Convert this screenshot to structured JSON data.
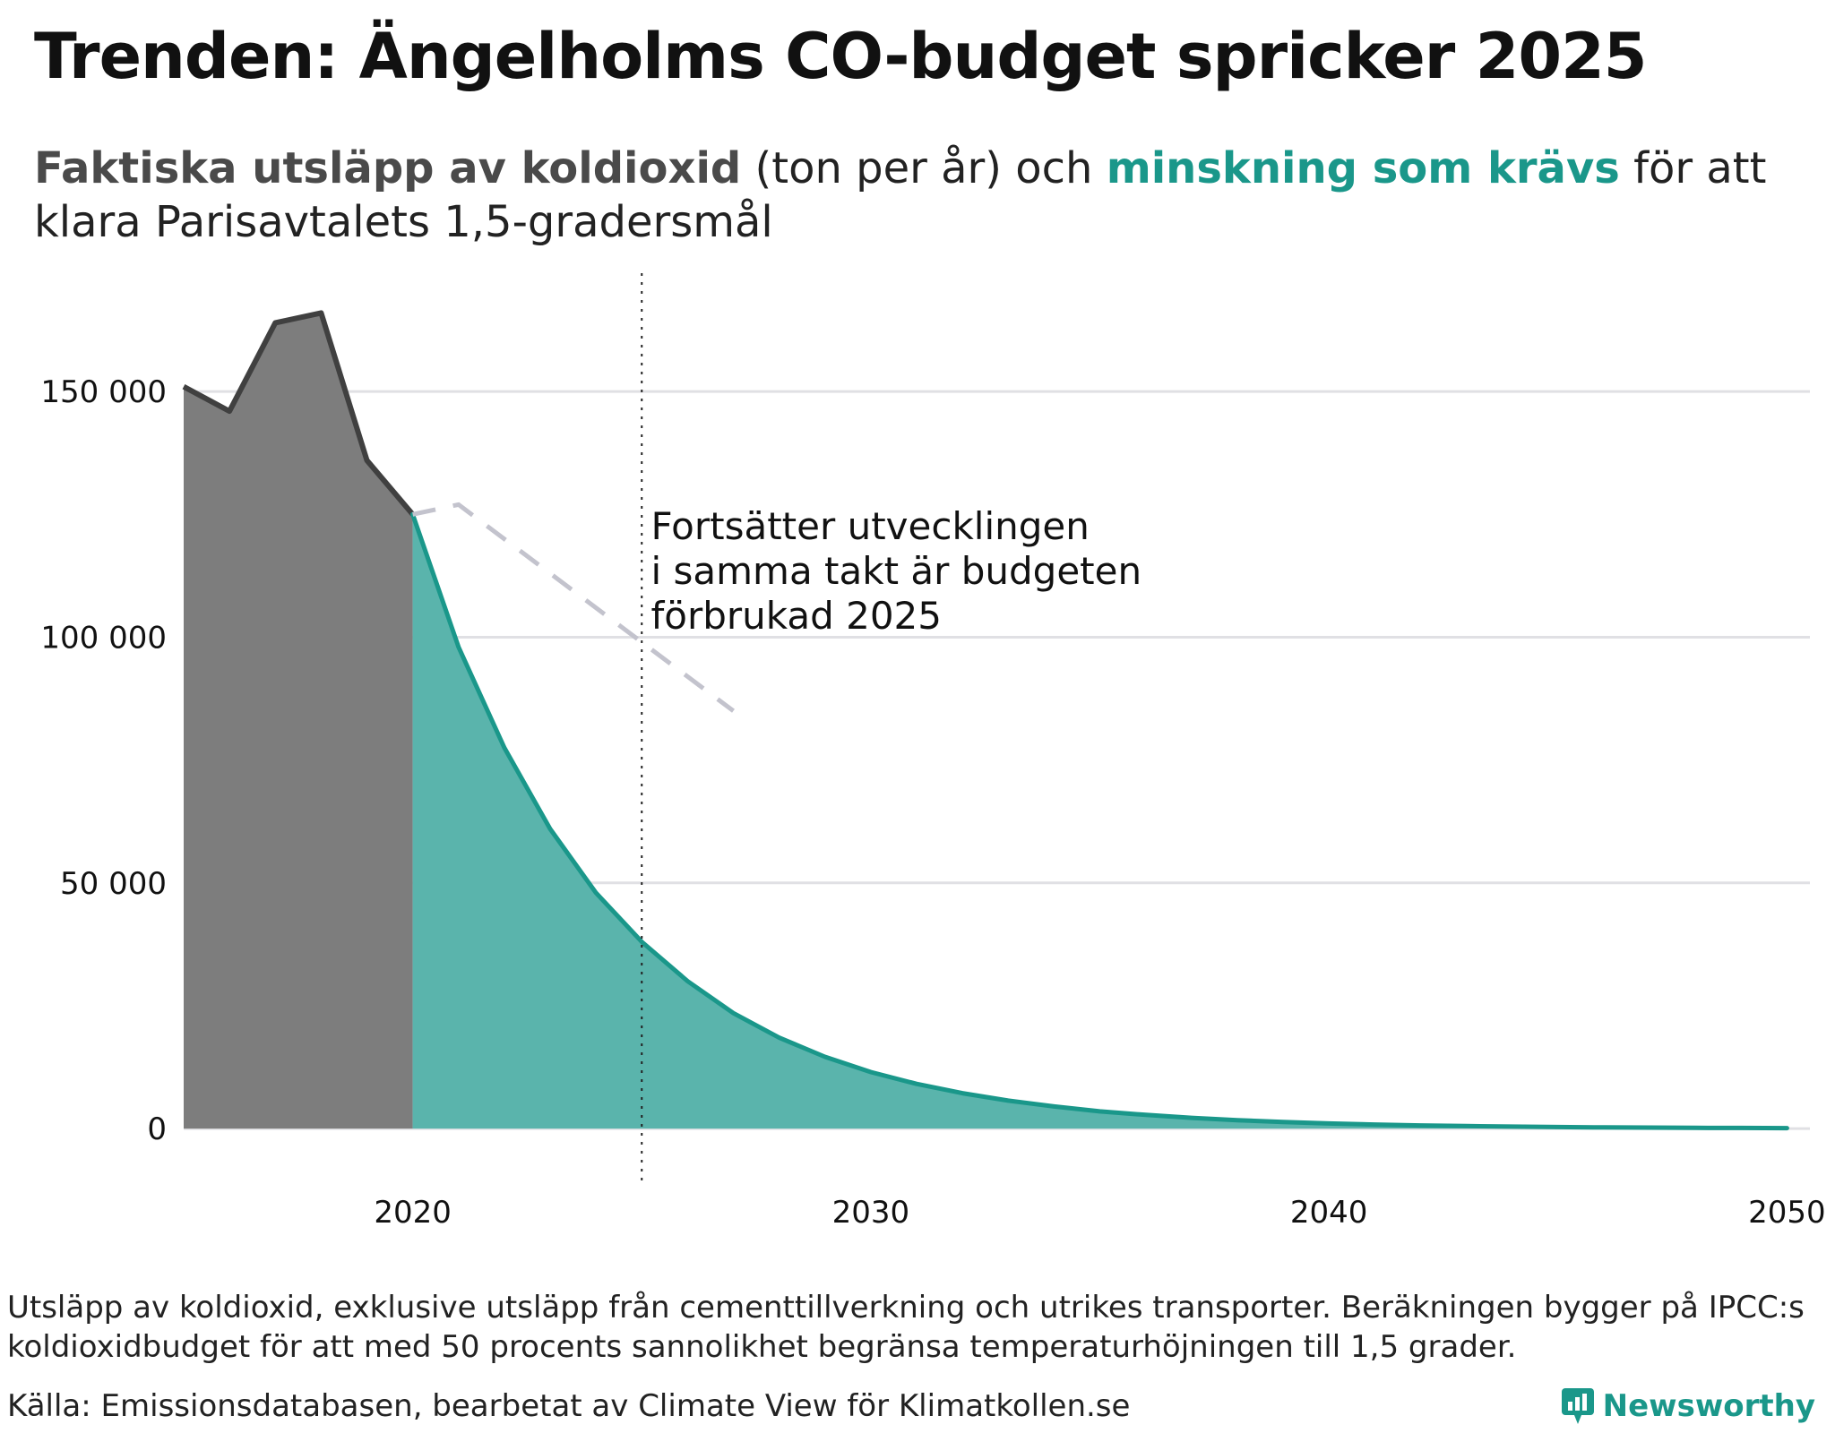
{
  "title": "Trenden: Ängelholms CO-budget spricker 2025",
  "subtitle": {
    "part1": "Faktiska utsläpp av koldioxid",
    "part2": " (ton per år) och ",
    "part3": "minskning som krävs",
    "part4": " för att klara Parisavtalets 1,5-gradersmål"
  },
  "colors": {
    "actual_fill": "#7d7d7d",
    "actual_line": "#404040",
    "required_fill": "#5ab4ac",
    "required_line": "#1a978a",
    "trend_line": "#c3c3cd",
    "grid": "#e0e0e4",
    "brand": "#1a978a"
  },
  "chart_data": {
    "type": "area",
    "title": "Trenden: Ängelholms CO-budget spricker 2025",
    "xlabel": "",
    "ylabel": "ton per år",
    "xlim": [
      2015,
      2050.5
    ],
    "ylim": [
      -10000,
      175000
    ],
    "x_ticks": [
      2020,
      2030,
      2040,
      2050
    ],
    "x_tick_labels": [
      "2020",
      "2030",
      "2040",
      "2050"
    ],
    "y_ticks": [
      0,
      50000,
      100000,
      150000
    ],
    "y_tick_labels": [
      "0",
      "50 000",
      "100 000",
      "150 000"
    ],
    "grid": true,
    "series": [
      {
        "name": "Faktiska utsläpp av koldioxid",
        "x": [
          2015,
          2016,
          2017,
          2018,
          2019,
          2020
        ],
        "values": [
          151000,
          146000,
          164000,
          166000,
          136000,
          125000
        ]
      },
      {
        "name": "Minskning som krävs",
        "x": [
          2020,
          2021,
          2022,
          2023,
          2024,
          2025,
          2026,
          2027,
          2028,
          2029,
          2030,
          2031,
          2032,
          2033,
          2034,
          2035,
          2036,
          2037,
          2038,
          2039,
          2040,
          2041,
          2042,
          2043,
          2044,
          2045,
          2046,
          2047,
          2048,
          2049,
          2050
        ],
        "values": [
          125000,
          98000,
          77500,
          61000,
          48000,
          38000,
          30000,
          23500,
          18500,
          14600,
          11500,
          9100,
          7200,
          5700,
          4500,
          3500,
          2800,
          2200,
          1700,
          1350,
          1050,
          830,
          650,
          510,
          400,
          320,
          250,
          200,
          160,
          125,
          100
        ]
      },
      {
        "name": "Trend",
        "x": [
          2020,
          2021,
          2027
        ],
        "values": [
          125000,
          127000,
          85000
        ]
      }
    ],
    "vline": {
      "x": 2025
    },
    "annotation": {
      "lines": [
        "Fortsätter utvecklingen",
        "i samma takt är budgeten",
        "förbrukad 2025"
      ],
      "x": 2025.2,
      "y": 120000
    }
  },
  "footnote": "Utsläpp av koldioxid, exklusive utsläpp från cementtillverkning och utrikes transporter. Beräkningen bygger på IPCC:s koldioxidbudget för att med 50 procents sannolikhet begränsa temperaturhöjningen till 1,5 grader.",
  "source": "Källa: Emissionsdatabasen, bearbetat av Climate View för Klimatkollen.se",
  "brand": {
    "name": "Newsworthy"
  }
}
